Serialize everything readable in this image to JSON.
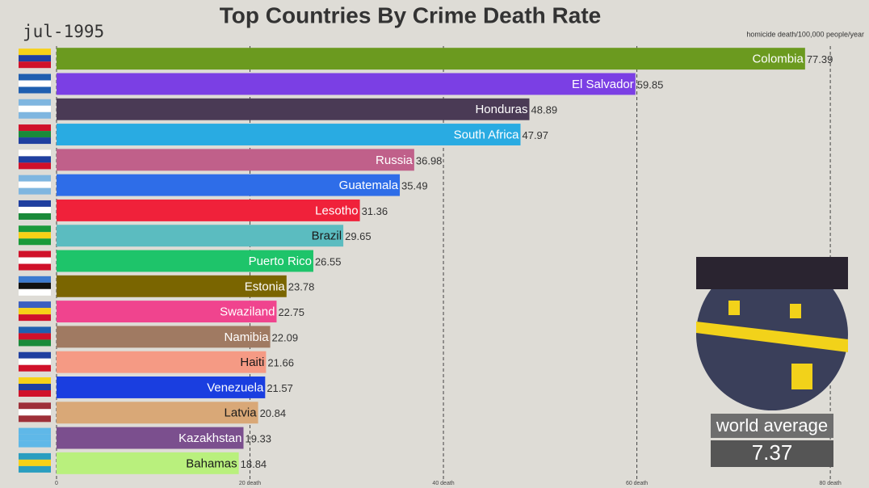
{
  "chart_data": {
    "type": "bar",
    "orientation": "horizontal",
    "title": "Top Countries By Crime Death Rate",
    "date_label": "jul-1995",
    "unit_label": "homicide death/100,000 people/year",
    "categories": [
      "Colombia",
      "El Salvador",
      "Honduras",
      "South Africa",
      "Russia",
      "Guatemala",
      "Lesotho",
      "Brazil",
      "Puerto Rico",
      "Estonia",
      "Swaziland",
      "Namibia",
      "Haiti",
      "Venezuela",
      "Latvia",
      "Kazakhstan",
      "Bahamas"
    ],
    "values": [
      77.39,
      59.85,
      48.89,
      47.97,
      36.98,
      35.49,
      31.36,
      29.65,
      26.55,
      23.78,
      22.75,
      22.09,
      21.66,
      21.57,
      20.84,
      19.33,
      18.84
    ],
    "colors": [
      "#6b9a1f",
      "#7b3fe4",
      "#4a3a55",
      "#29abe2",
      "#c0608a",
      "#2e6de8",
      "#f0213a",
      "#5bbcc0",
      "#1ec46a",
      "#7a6500",
      "#f0448e",
      "#a07a62",
      "#f59a84",
      "#1a3ee0",
      "#d9a877",
      "#7b4f8e",
      "#b9f07d"
    ],
    "xlim": [
      0,
      84
    ],
    "xticks": [
      0,
      {
        "value": 20,
        "label": "20 death"
      },
      {
        "value": 40,
        "label": "40 death"
      },
      {
        "value": 60,
        "label": "60 death"
      },
      {
        "value": 80,
        "label": "80 death"
      }
    ],
    "grid": true,
    "world_average_label": "world average",
    "world_average": 7.37
  }
}
